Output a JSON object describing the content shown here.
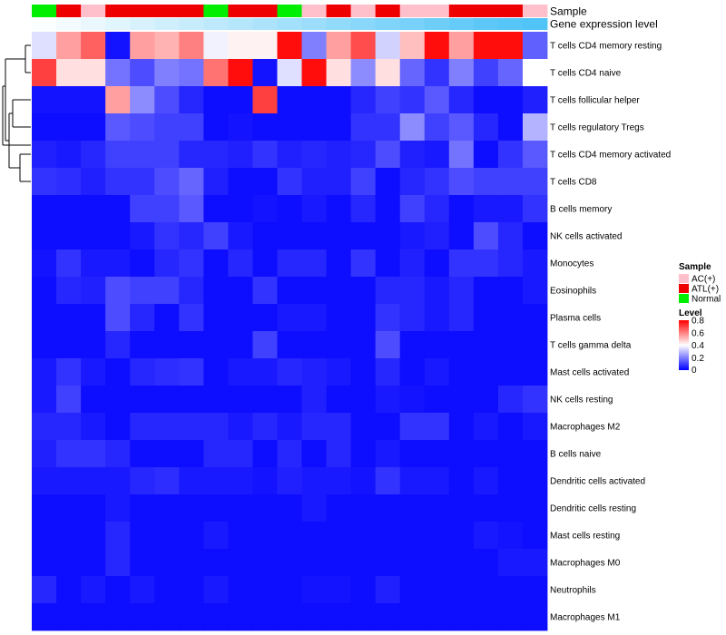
{
  "chart_data": {
    "type": "heatmap",
    "title": "",
    "annotations": [
      {
        "name": "Sample",
        "label": "Sample"
      },
      {
        "name": "Gene expression level",
        "label": "Gene expression level"
      }
    ],
    "sample_groups": [
      "Normal",
      "ATL(+)",
      "AC(+)",
      "ATL(+)",
      "ATL(+)",
      "ATL(+)",
      "ATL(+)",
      "Normal",
      "ATL(+)",
      "ATL(+)",
      "Normal",
      "AC(+)",
      "ATL(+)",
      "AC(+)",
      "ATL(+)",
      "AC(+)",
      "AC(+)",
      "ATL(+)",
      "ATL(+)",
      "ATL(+)",
      "AC(+)"
    ],
    "gene_expression_level": [
      0.02,
      0.07,
      0.12,
      0.17,
      0.22,
      0.27,
      0.32,
      0.37,
      0.42,
      0.47,
      0.52,
      0.57,
      0.62,
      0.67,
      0.72,
      0.77,
      0.82,
      0.87,
      0.92,
      0.96,
      0.99
    ],
    "rows": [
      "T cells CD4 memory resting",
      "T cells CD4 naive",
      "T cells follicular helper",
      "T cells regulatory  Tregs",
      "T cells CD4 memory activated",
      "T cells CD8",
      "B cells memory",
      "NK cells activated",
      "Monocytes",
      "Eosinophils",
      "Plasma cells",
      "T cells gamma delta",
      "Mast cells activated",
      "NK cells resting",
      "Macrophages M2",
      "B cells naive",
      "Dendritic cells activated",
      "Dendritic cells resting",
      "Mast cells resting",
      "Macrophages M0",
      "Neutrophils",
      "Macrophages M1"
    ],
    "values": [
      [
        0.35,
        0.55,
        0.65,
        0.03,
        0.55,
        0.52,
        0.6,
        0.38,
        0.42,
        0.42,
        0.78,
        0.2,
        0.55,
        0.68,
        0.33,
        0.5,
        0.78,
        0.55,
        0.78,
        0.78,
        0.15
      ],
      [
        0.7,
        0.45,
        0.45,
        0.18,
        0.12,
        0.2,
        0.18,
        0.62,
        0.78,
        0.03,
        0.35,
        0.78,
        0.45,
        0.22,
        0.45,
        0.16,
        0.08,
        0.2,
        0.1,
        0.16,
        0.4
      ],
      [
        0.03,
        0.03,
        0.03,
        0.55,
        0.22,
        0.12,
        0.06,
        0.02,
        0.02,
        0.7,
        0.02,
        0.02,
        0.02,
        0.06,
        0.1,
        0.08,
        0.14,
        0.06,
        0.02,
        0.02,
        0.05
      ],
      [
        0.02,
        0.02,
        0.02,
        0.14,
        0.12,
        0.1,
        0.1,
        0.02,
        0.03,
        0.02,
        0.02,
        0.02,
        0.02,
        0.08,
        0.08,
        0.22,
        0.1,
        0.14,
        0.06,
        0.02,
        0.28
      ],
      [
        0.05,
        0.04,
        0.06,
        0.1,
        0.1,
        0.1,
        0.06,
        0.06,
        0.05,
        0.08,
        0.05,
        0.06,
        0.05,
        0.06,
        0.12,
        0.05,
        0.04,
        0.18,
        0.02,
        0.08,
        0.14
      ],
      [
        0.08,
        0.07,
        0.05,
        0.08,
        0.08,
        0.12,
        0.16,
        0.05,
        0.02,
        0.02,
        0.08,
        0.05,
        0.05,
        0.1,
        0.02,
        0.06,
        0.08,
        0.12,
        0.1,
        0.1,
        0.1
      ],
      [
        0.02,
        0.02,
        0.02,
        0.02,
        0.1,
        0.1,
        0.14,
        0.02,
        0.02,
        0.03,
        0.02,
        0.04,
        0.02,
        0.06,
        0.02,
        0.1,
        0.06,
        0.02,
        0.04,
        0.04,
        0.08
      ],
      [
        0.02,
        0.02,
        0.02,
        0.02,
        0.04,
        0.08,
        0.06,
        0.1,
        0.04,
        0.02,
        0.02,
        0.02,
        0.02,
        0.02,
        0.02,
        0.04,
        0.05,
        0.02,
        0.12,
        0.06,
        0.02
      ],
      [
        0.03,
        0.08,
        0.04,
        0.04,
        0.02,
        0.06,
        0.08,
        0.02,
        0.06,
        0.02,
        0.06,
        0.06,
        0.02,
        0.08,
        0.02,
        0.05,
        0.02,
        0.08,
        0.08,
        0.06,
        0.04
      ],
      [
        0.02,
        0.06,
        0.05,
        0.12,
        0.1,
        0.1,
        0.06,
        0.02,
        0.02,
        0.08,
        0.02,
        0.02,
        0.02,
        0.02,
        0.06,
        0.06,
        0.04,
        0.06,
        0.02,
        0.02,
        0.04
      ],
      [
        0.02,
        0.02,
        0.02,
        0.12,
        0.06,
        0.02,
        0.08,
        0.02,
        0.02,
        0.02,
        0.04,
        0.04,
        0.02,
        0.02,
        0.08,
        0.06,
        0.04,
        0.06,
        0.02,
        0.02,
        0.02
      ],
      [
        0.02,
        0.02,
        0.02,
        0.06,
        0.02,
        0.02,
        0.02,
        0.02,
        0.02,
        0.1,
        0.02,
        0.02,
        0.02,
        0.02,
        0.12,
        0.02,
        0.02,
        0.02,
        0.02,
        0.02,
        0.02
      ],
      [
        0.04,
        0.08,
        0.04,
        0.02,
        0.06,
        0.07,
        0.08,
        0.02,
        0.04,
        0.04,
        0.06,
        0.05,
        0.04,
        0.02,
        0.06,
        0.02,
        0.04,
        0.02,
        0.02,
        0.02,
        0.02
      ],
      [
        0.04,
        0.1,
        0.02,
        0.02,
        0.02,
        0.02,
        0.02,
        0.02,
        0.02,
        0.02,
        0.02,
        0.05,
        0.02,
        0.02,
        0.04,
        0.03,
        0.02,
        0.02,
        0.02,
        0.06,
        0.08
      ],
      [
        0.06,
        0.06,
        0.04,
        0.02,
        0.06,
        0.06,
        0.06,
        0.06,
        0.04,
        0.06,
        0.04,
        0.06,
        0.06,
        0.02,
        0.02,
        0.08,
        0.08,
        0.02,
        0.04,
        0.02,
        0.04
      ],
      [
        0.05,
        0.08,
        0.08,
        0.06,
        0.02,
        0.02,
        0.02,
        0.06,
        0.06,
        0.02,
        0.06,
        0.02,
        0.06,
        0.02,
        0.04,
        0.02,
        0.02,
        0.02,
        0.02,
        0.02,
        0.02
      ],
      [
        0.04,
        0.04,
        0.04,
        0.04,
        0.06,
        0.07,
        0.04,
        0.04,
        0.04,
        0.03,
        0.05,
        0.04,
        0.04,
        0.03,
        0.08,
        0.04,
        0.04,
        0.02,
        0.04,
        0.02,
        0.02
      ],
      [
        0.02,
        0.02,
        0.02,
        0.04,
        0.02,
        0.02,
        0.02,
        0.02,
        0.02,
        0.02,
        0.02,
        0.04,
        0.02,
        0.02,
        0.02,
        0.02,
        0.02,
        0.02,
        0.02,
        0.02,
        0.02
      ],
      [
        0.02,
        0.02,
        0.02,
        0.06,
        0.02,
        0.02,
        0.02,
        0.04,
        0.02,
        0.02,
        0.02,
        0.02,
        0.02,
        0.02,
        0.02,
        0.02,
        0.02,
        0.02,
        0.04,
        0.03,
        0.02
      ],
      [
        0.02,
        0.02,
        0.02,
        0.06,
        0.02,
        0.02,
        0.02,
        0.02,
        0.02,
        0.02,
        0.02,
        0.02,
        0.02,
        0.02,
        0.02,
        0.02,
        0.02,
        0.02,
        0.02,
        0.04,
        0.04
      ],
      [
        0.06,
        0.02,
        0.04,
        0.02,
        0.04,
        0.02,
        0.02,
        0.04,
        0.02,
        0.02,
        0.02,
        0.03,
        0.03,
        0.02,
        0.05,
        0.02,
        0.02,
        0.02,
        0.02,
        0.02,
        0.02
      ],
      [
        0.02,
        0.02,
        0.02,
        0.02,
        0.02,
        0.02,
        0.02,
        0.02,
        0.02,
        0.02,
        0.02,
        0.02,
        0.02,
        0.02,
        0.02,
        0.02,
        0.02,
        0.02,
        0.02,
        0.02,
        0.02
      ]
    ],
    "legend": {
      "sample_title": "Sample",
      "sample_entries": [
        {
          "label": "AC(+)",
          "color": "#ffc0cb"
        },
        {
          "label": "ATL(+)",
          "color": "#ee0000"
        },
        {
          "label": "Normal",
          "color": "#00ee00"
        }
      ],
      "level_title": "Level",
      "level_ticks": [
        "0.8",
        "0.6",
        "0.4",
        "0.2",
        "0"
      ],
      "level_range": [
        0,
        0.8
      ],
      "placement": "right"
    },
    "colors": {
      "low": "#0000ff",
      "mid": "#ffffff",
      "high": "#ff0000",
      "expr_low": "#ffffff",
      "expr_high": "#4fc3f7"
    }
  }
}
